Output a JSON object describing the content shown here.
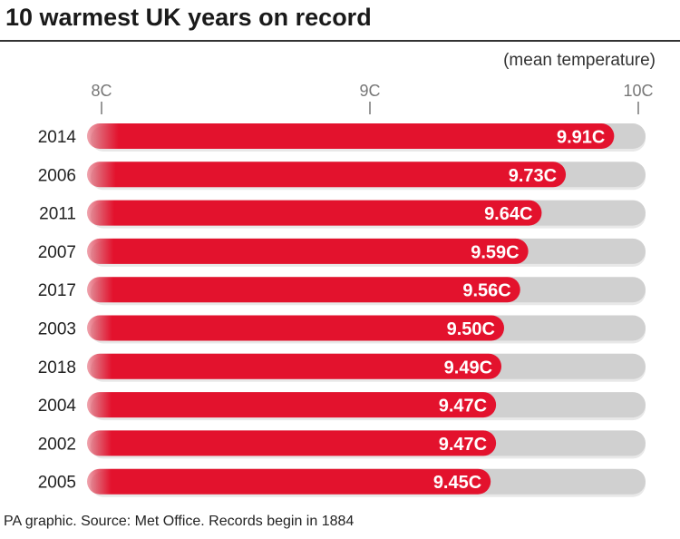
{
  "title": "10 warmest UK years on record",
  "footer": "PA graphic. Source: Met Office. Records begin in 1884",
  "chart_data": {
    "type": "bar",
    "orientation": "horizontal",
    "title": "10 warmest UK years on record",
    "unit_label": "(mean temperature)",
    "xlim": [
      8,
      10
    ],
    "xticks": [
      {
        "value": 8,
        "label": "8C"
      },
      {
        "value": 9,
        "label": "9C"
      },
      {
        "value": 10,
        "label": "10C"
      }
    ],
    "categories": [
      "2014",
      "2006",
      "2011",
      "2007",
      "2017",
      "2003",
      "2018",
      "2004",
      "2002",
      "2005"
    ],
    "values": [
      9.91,
      9.73,
      9.64,
      9.59,
      9.56,
      9.5,
      9.49,
      9.47,
      9.47,
      9.45
    ],
    "value_labels": [
      "9.91C",
      "9.73C",
      "9.64C",
      "9.59C",
      "9.56C",
      "9.50C",
      "9.49C",
      "9.47C",
      "9.47C",
      "9.45C"
    ],
    "colors": {
      "bar": "#e3122d",
      "track": "#d0d0d0",
      "label_text": "#ffffff",
      "tick": "#999999"
    }
  }
}
